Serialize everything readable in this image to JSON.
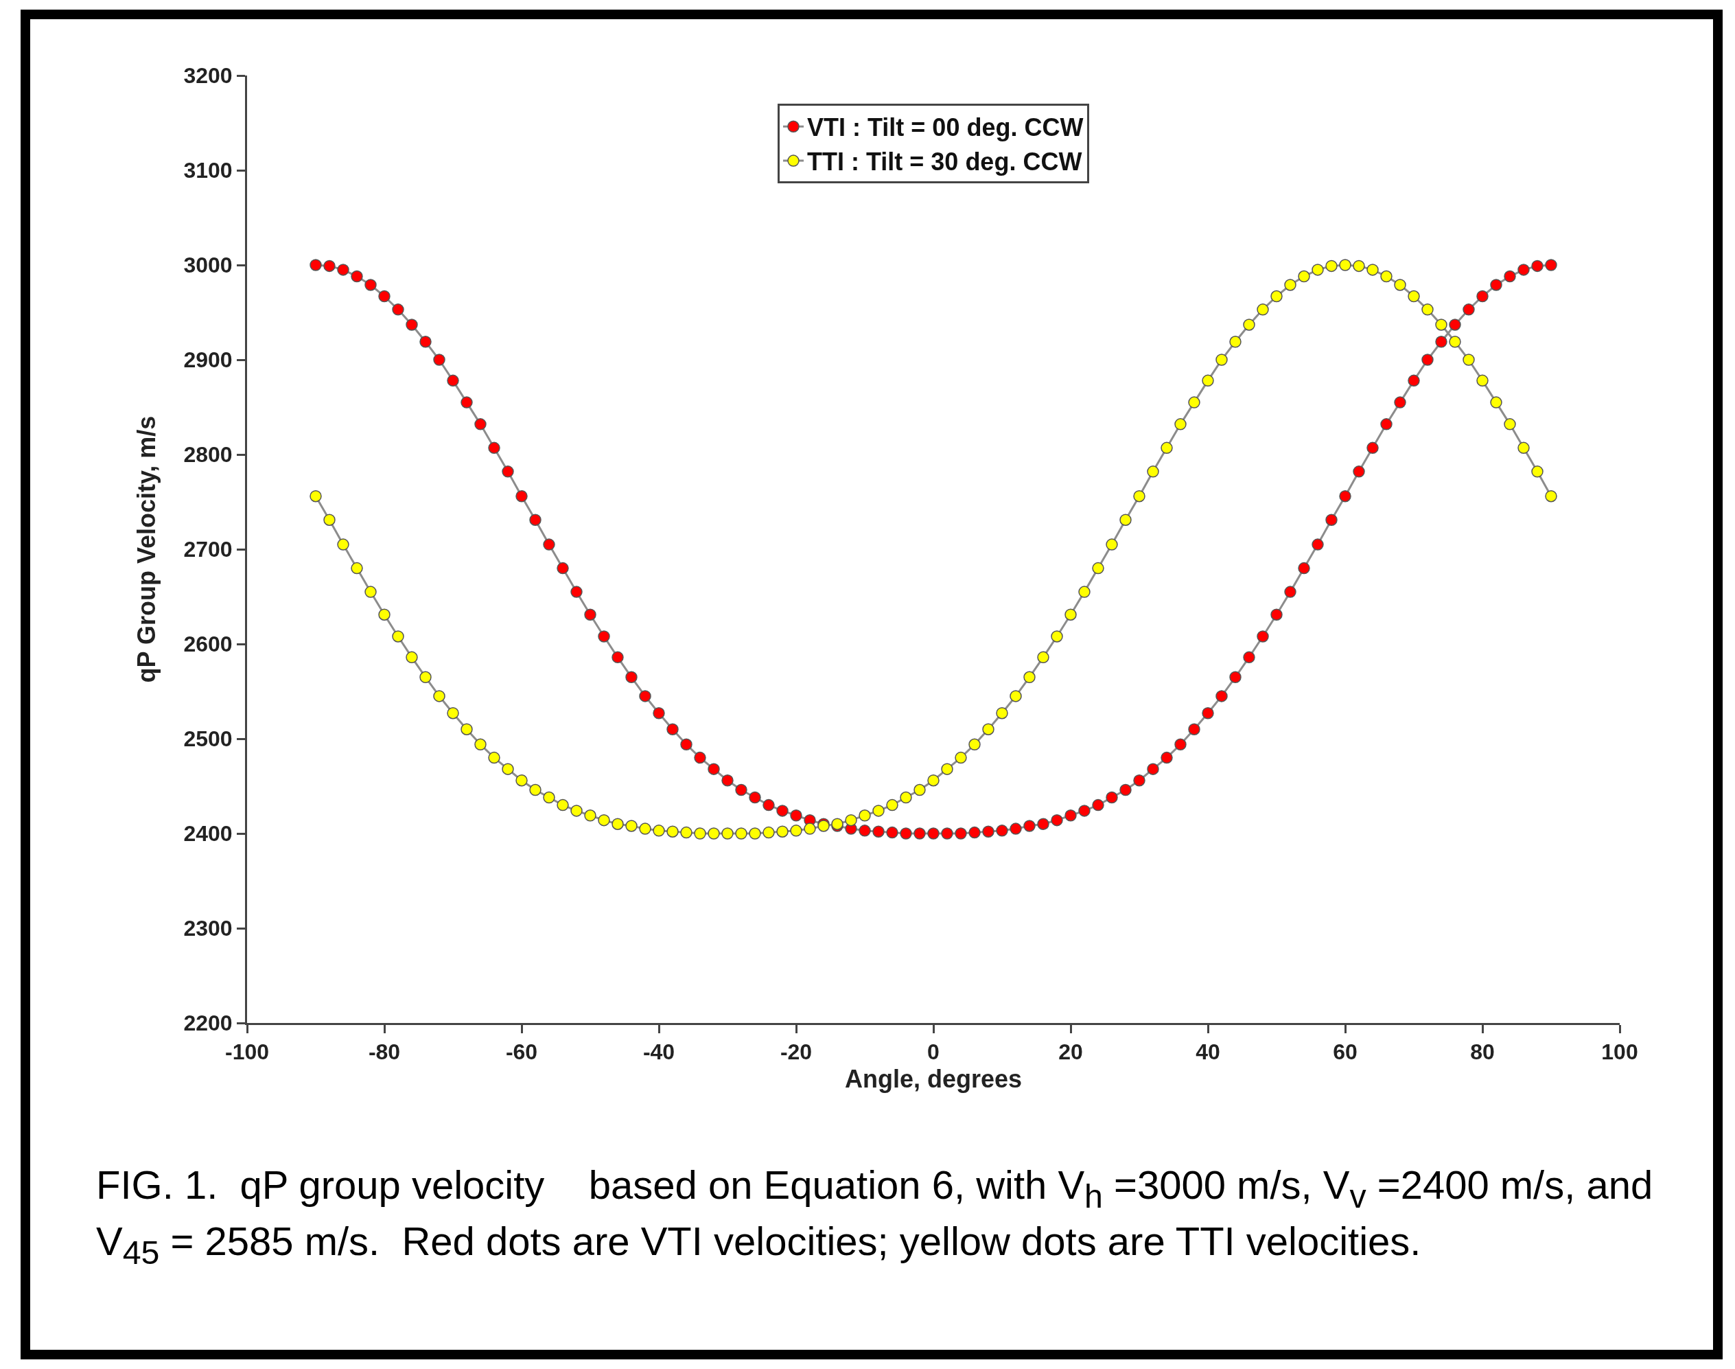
{
  "chart_data": {
    "type": "line",
    "xlabel": "Angle, degrees",
    "ylabel": "qP Group Velocity, m/s",
    "x": [
      -90,
      -88,
      -86,
      -84,
      -82,
      -80,
      -78,
      -76,
      -74,
      -72,
      -70,
      -68,
      -66,
      -64,
      -62,
      -60,
      -58,
      -56,
      -54,
      -52,
      -50,
      -48,
      -46,
      -44,
      -42,
      -40,
      -38,
      -36,
      -34,
      -32,
      -30,
      -28,
      -26,
      -24,
      -22,
      -20,
      -18,
      -16,
      -14,
      -12,
      -10,
      -8,
      -6,
      -4,
      -2,
      0,
      2,
      4,
      6,
      8,
      10,
      12,
      14,
      16,
      18,
      20,
      22,
      24,
      26,
      28,
      30,
      32,
      34,
      36,
      38,
      40,
      42,
      44,
      46,
      48,
      50,
      52,
      54,
      56,
      58,
      60,
      62,
      64,
      66,
      68,
      70,
      72,
      74,
      76,
      78,
      80,
      82,
      84,
      86,
      88,
      90
    ],
    "series": [
      {
        "name": "VTI : Tilt = 00 deg. CCW",
        "color": "#8c8c8c",
        "colors": [
          "#ff0000",
          "#ff0000",
          "#ff0000",
          "#ff0000",
          "#ff0000",
          "#ff0000",
          "#ff0000",
          "#ff0000",
          "#ff0000",
          "#ff0000",
          "#ff0000",
          "#ff0000",
          "#ff0000",
          "#ff0000",
          "#ff0000",
          "#ff0000",
          "#ff0000",
          "#ff0000",
          "#ff0000",
          "#ff0000",
          "#ff0000",
          "#ff0000",
          "#ff0000",
          "#ff0000",
          "#ff0000",
          "#ff0000",
          "#ff0000",
          "#ff0000",
          "#ff0000",
          "#ff0000",
          "#ff0000",
          "#ff0000",
          "#ff0000",
          "#ff0000",
          "#ff0000",
          "#ff0000",
          "#ff0000",
          "#ff0000",
          "#ff0000",
          "#ff0000",
          "#ff0000",
          "#ff0000",
          "#ff0000",
          "#ff0000",
          "#ff0000",
          "#ff0000",
          "#ff0000",
          "#ff0000",
          "#ff0000",
          "#ff0000",
          "#ff0000",
          "#ff0000",
          "#ff0000",
          "#ff0000",
          "#ff0000",
          "#ff0000",
          "#ff0000",
          "#ff0000",
          "#ff0000",
          "#ff0000",
          "#ff0000",
          "#ff0000",
          "#ff0000",
          "#ff0000",
          "#ff0000",
          "#ff0000",
          "#ff0000",
          "#ff0000",
          "#ff0000",
          "#ff0000",
          "#ff0000",
          "#ff0000",
          "#ff0000",
          "#ff0000",
          "#ff0000",
          "#ff0000",
          "#ff0000",
          "#ff0000",
          "#ff0000",
          "#ff0000",
          "#ff0000",
          "#ff0000",
          "#ff0000",
          "#ff0000",
          "#ff0000",
          "#ff0000",
          "#ff0000",
          "#ff0000",
          "#ff0000",
          "#ff0000",
          "#ff0000"
        ],
        "values": [
          3000,
          2999,
          2995,
          2988,
          2979,
          2967,
          2953,
          2937,
          2919,
          2900,
          2878,
          2855,
          2832,
          2807,
          2782,
          2756,
          2731,
          2705,
          2680,
          2655,
          2631,
          2608,
          2586,
          2565,
          2545,
          2527,
          2510,
          2494,
          2480,
          2468,
          2456,
          2446,
          2438,
          2430,
          2424,
          2419,
          2414,
          2410,
          2408,
          2405,
          2403,
          2402,
          2401,
          2400,
          2400,
          2400,
          2400,
          2400,
          2401,
          2402,
          2403,
          2405,
          2408,
          2410,
          2414,
          2419,
          2424,
          2430,
          2438,
          2446,
          2456,
          2468,
          2480,
          2494,
          2510,
          2527,
          2545,
          2565,
          2586,
          2608,
          2631,
          2655,
          2680,
          2705,
          2731,
          2756,
          2782,
          2807,
          2832,
          2855,
          2878,
          2900,
          2919,
          2937,
          2953,
          2967,
          2979,
          2988,
          2995,
          2999,
          3000
        ]
      },
      {
        "name": "TTI : Tilt = 30 deg. CCW",
        "color": "#8c8c8c",
        "colors": [
          "#ffff00",
          "#ffff00",
          "#ffff00",
          "#ffff00",
          "#ffff00",
          "#ffff00",
          "#ffff00",
          "#ffff00",
          "#ffff00",
          "#ffff00",
          "#ffff00",
          "#ffff00",
          "#ffff00",
          "#ffff00",
          "#ffff00",
          "#ffff00",
          "#ffff00",
          "#ffff00",
          "#ffff00",
          "#ffff00",
          "#ffff00",
          "#ffff00",
          "#ffff00",
          "#ffff00",
          "#ffff00",
          "#ffff00",
          "#ffff00",
          "#ffff00",
          "#ffff00",
          "#ffff00",
          "#ffff00",
          "#ffff00",
          "#ffff00",
          "#ffff00",
          "#ffff00",
          "#ffff00",
          "#ffff00",
          "#ffff00",
          "#ffff00",
          "#ffff00",
          "#ffff00",
          "#ffff00",
          "#ffff00",
          "#ffff00",
          "#ffff00",
          "#ffff00",
          "#ffff00",
          "#ffff00",
          "#ffff00",
          "#ffff00",
          "#ffff00",
          "#ffff00",
          "#ffff00",
          "#ffff00",
          "#ffff00",
          "#ffff00",
          "#ffff00",
          "#ffff00",
          "#ffff00",
          "#ffff00",
          "#ffff00",
          "#ffff00",
          "#ffff00",
          "#ffff00",
          "#ffff00",
          "#ffff00",
          "#ffff00",
          "#ffff00",
          "#ffff00",
          "#ffff00",
          "#ffff00",
          "#ffff00",
          "#ffff00",
          "#ffff00",
          "#ffff00",
          "#ffff00",
          "#ffff00",
          "#ffff00",
          "#ffff00",
          "#ffff00",
          "#ffff00",
          "#ffff00",
          "#ffff00",
          "#ffff00",
          "#ffff00",
          "#ffff00",
          "#ffff00",
          "#ffff00",
          "#ffff00",
          "#ffff00",
          "#ffff00"
        ],
        "values": [
          2756,
          2731,
          2705,
          2680,
          2655,
          2631,
          2608,
          2586,
          2565,
          2545,
          2527,
          2510,
          2494,
          2480,
          2468,
          2456,
          2446,
          2438,
          2430,
          2424,
          2419,
          2414,
          2410,
          2408,
          2405,
          2403,
          2402,
          2401,
          2400,
          2400,
          2400,
          2400,
          2400,
          2401,
          2402,
          2403,
          2405,
          2408,
          2410,
          2414,
          2419,
          2424,
          2430,
          2438,
          2446,
          2456,
          2468,
          2480,
          2494,
          2510,
          2527,
          2545,
          2565,
          2586,
          2608,
          2631,
          2655,
          2680,
          2705,
          2731,
          2756,
          2782,
          2807,
          2832,
          2855,
          2878,
          2900,
          2919,
          2937,
          2953,
          2967,
          2979,
          2988,
          2995,
          2999,
          3000,
          2999,
          2995,
          2988,
          2979,
          2967,
          2953,
          2937,
          2919,
          2900,
          2878,
          2855,
          2832,
          2807,
          2782,
          2756
        ]
      }
    ],
    "xlim": [
      -100,
      100
    ],
    "xticks": [
      -100,
      -80,
      -60,
      -40,
      -20,
      0,
      20,
      40,
      60,
      80,
      100
    ],
    "ylim": [
      2200,
      3200
    ],
    "yticks": [
      2200,
      2300,
      2400,
      2500,
      2600,
      2700,
      2800,
      2900,
      3000,
      3100,
      3200
    ],
    "grid": false,
    "legend": "top",
    "marker": "circle",
    "annotations": [
      "FIG. 1.  qP group velocity    based on Equation 6, with V$_{h}$ =3000 m/s, V$_{v}$ =2400 m/s, and V$_{45}$ = 2585 m/s.  Red dots are VTI velocities; yellow dots are TTI velocities."
    ]
  }
}
